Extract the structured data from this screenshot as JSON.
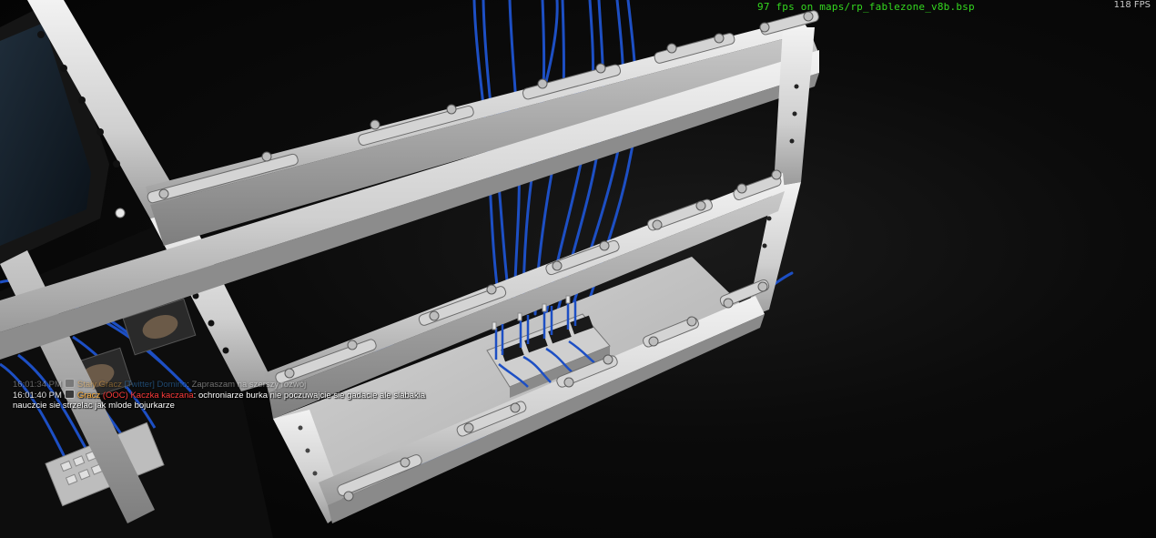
{
  "hud": {
    "debug_line": "97 fps on maps/rp_fablezone_v8b.bsp",
    "fps_counter": "118 FPS"
  },
  "chat": {
    "messages": [
      {
        "time": "16:01:34 PM",
        "rank": "Stały Gracz",
        "channel": "[Twitter]",
        "name": "Domino",
        "text": "Zapraszam na szerszy rozwój",
        "faded": true
      },
      {
        "time": "16:01:40 PM",
        "rank": "Gracz",
        "channel": "(OOC)",
        "name": "Kaczka kaczana",
        "text": "ochroniarze burka nie poczuwajcie sie gadacie ale slabakia",
        "continuation": "nauczcie sie strzelac jak mlode bojurkarze",
        "faded": false
      }
    ]
  },
  "colors": {
    "debug_text": "#34d81f",
    "twitter": "#3aa0ff",
    "ooc": "#ff3b3b",
    "rank": "#ffb03b",
    "cable": "#1d4fc4",
    "rack_metal": "#d9d9d9"
  }
}
